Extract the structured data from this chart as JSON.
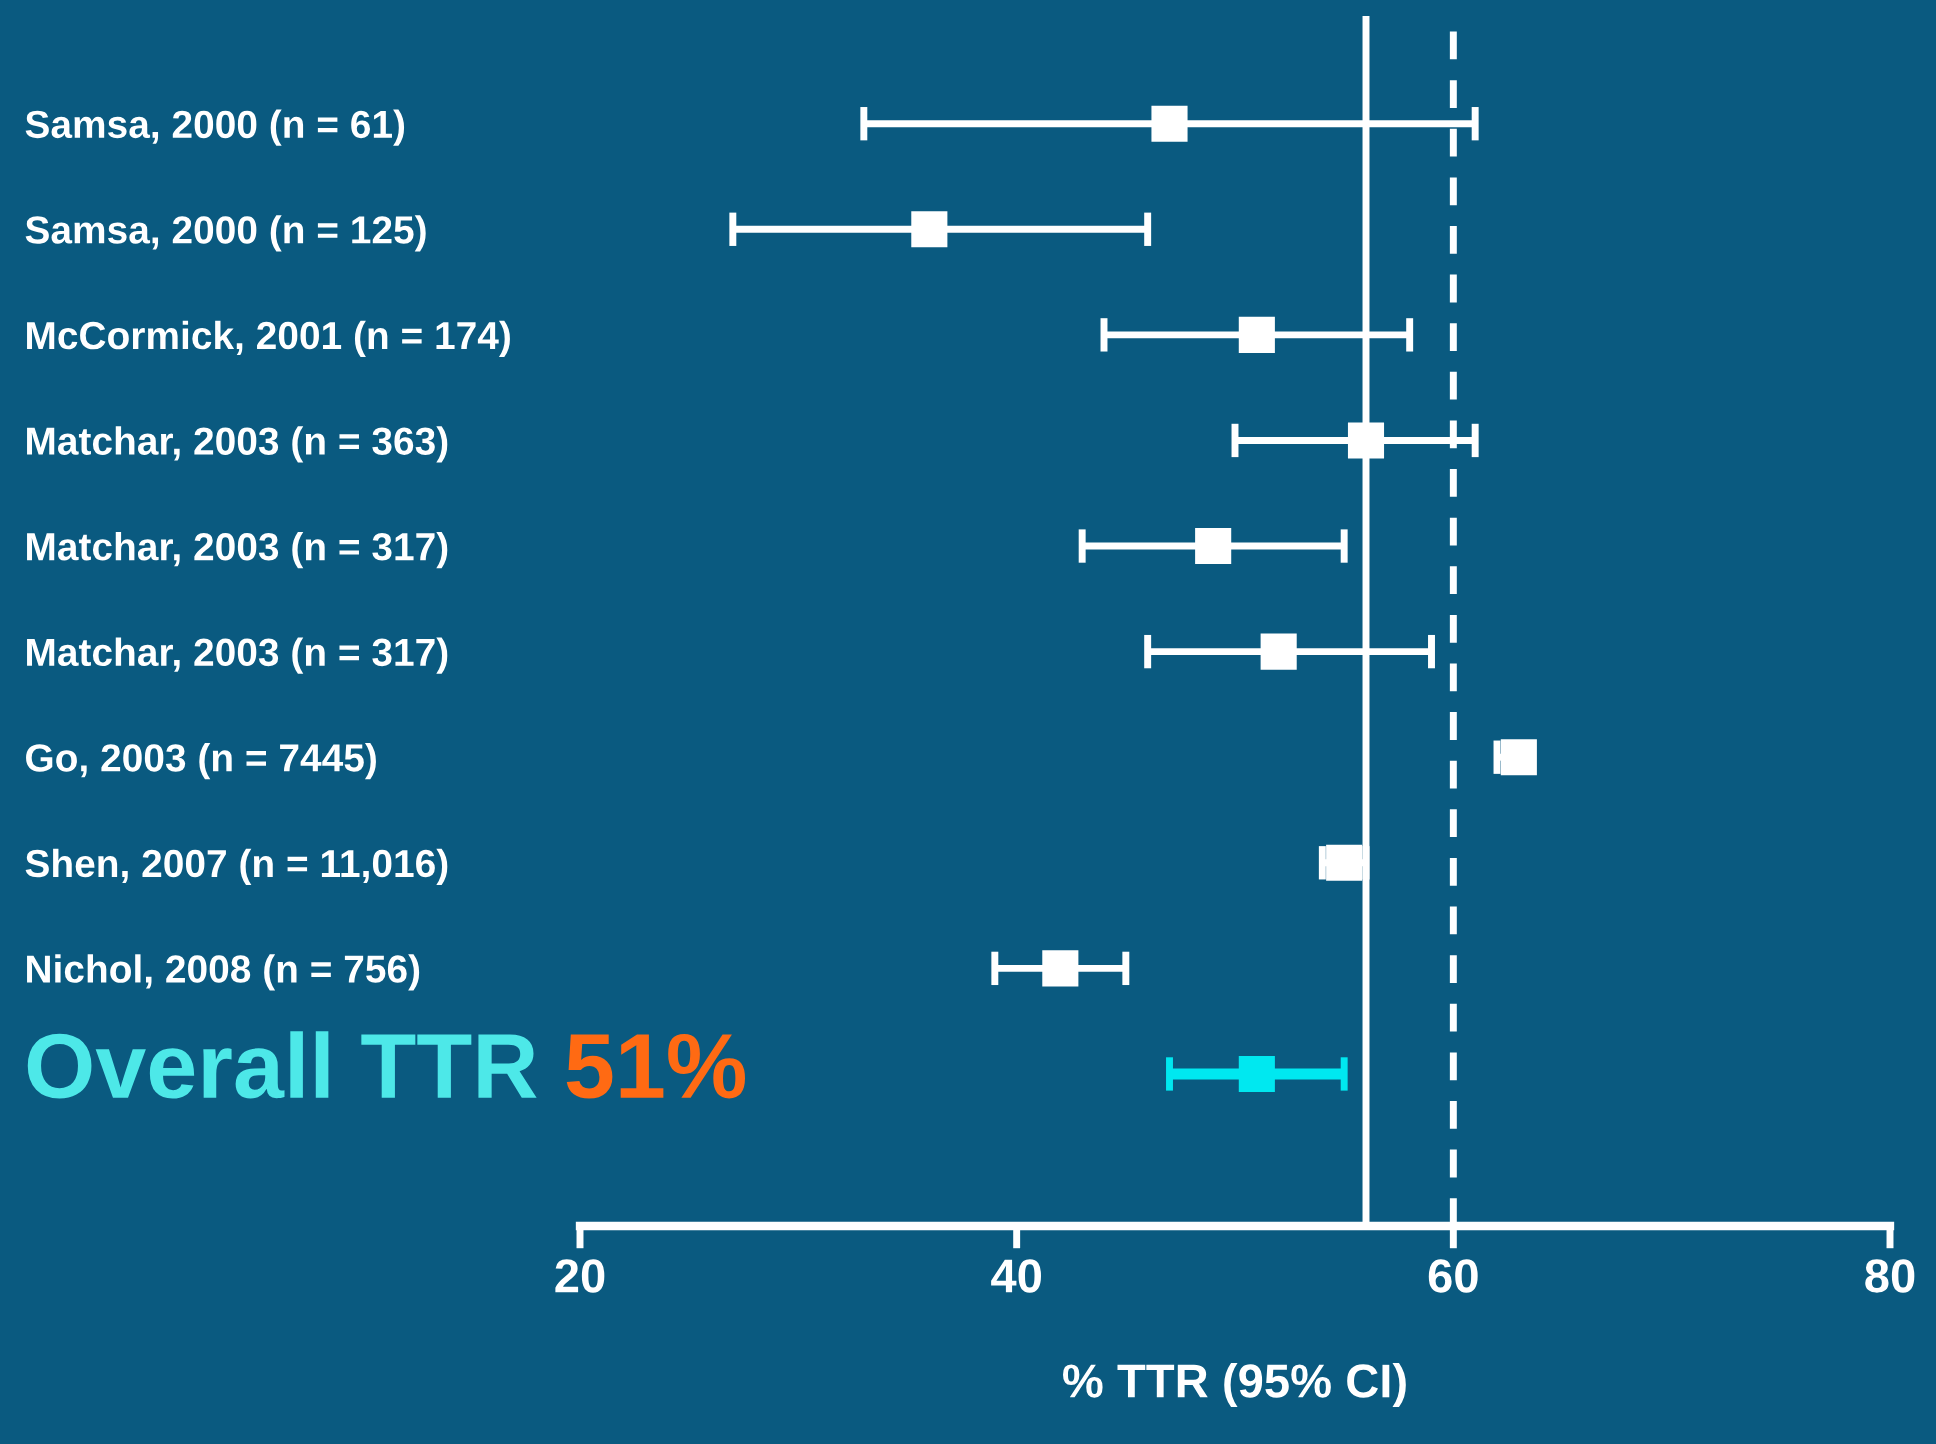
{
  "chart_data": {
    "type": "scatter",
    "orientation": "horizontal",
    "xlabel": "% TTR (95% CI)",
    "categories": [
      "Samsa, 2000 (n = 61)",
      "Samsa, 2000 (n = 125)",
      "McCormick, 2001 (n = 174)",
      "Matchar, 2003 (n = 363)",
      "Matchar, 2003 (n = 317)",
      "Matchar, 2003 (n = 317)",
      "Go, 2003 (n = 7445)",
      "Shen, 2007 (n = 11,016)",
      "Nichol, 2008 (n = 756)",
      null
    ],
    "values": [
      47,
      36,
      51,
      56,
      49,
      52,
      63,
      55,
      42,
      51
    ],
    "errors": [
      [
        33,
        61
      ],
      [
        27,
        46
      ],
      [
        44,
        58
      ],
      [
        50,
        61
      ],
      [
        43,
        55
      ],
      [
        46,
        59
      ],
      [
        62,
        63
      ],
      [
        54,
        56
      ],
      [
        39,
        45
      ],
      [
        47,
        55
      ]
    ],
    "colors": [
      "#ffffff",
      "#ffffff",
      "#ffffff",
      "#ffffff",
      "#ffffff",
      "#ffffff",
      "#ffffff",
      "#ffffff",
      "#ffffff",
      "#00e8f0"
    ],
    "marker": "square",
    "xlim": [
      20,
      80
    ],
    "xticks": [
      20,
      40,
      60,
      80
    ],
    "ref_lines": [
      {
        "axis": "x",
        "value": 56,
        "color": "#ffffff",
        "line_style": "solid"
      },
      {
        "axis": "x",
        "value": 60,
        "color": "#ffffff",
        "line_style": "dashed"
      }
    ],
    "annotations": [
      "Overall TTR",
      "51%"
    ],
    "grid": false,
    "legend": false
  }
}
